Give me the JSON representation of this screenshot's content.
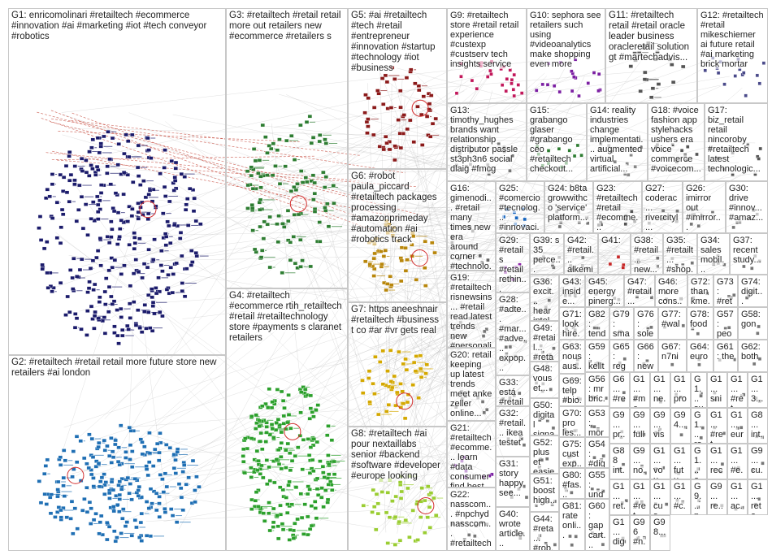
{
  "groups": [
    {
      "label": "G1: enricomolinari #retailtech #ecommerce #innovation #ai #marketing #iot #tech conveyor #robotics"
    },
    {
      "label": "G2: #retailtech #retail retail more future store new retailers #ai london"
    },
    {
      "label": "G3: #retailtech #retail retail more out retailers new #ecommerce #retailers s"
    },
    {
      "label": "G4: #retailtech #ecommerce rtih_retailtech #retail #retailtechnology store #payments s claranet retailers"
    },
    {
      "label": "G5: #ai #retailtech #tech #retail #entrepreneur #innovation #startup #technology #iot #business"
    },
    {
      "label": "G6: #robot paula_piccard #retailtech packages processing #amazonprimeday #automation #ai #robotics track"
    },
    {
      "label": "G7: https aneeshnair #retailtech #business t co #ar #vr gets real"
    },
    {
      "label": "G8: #retailtech #ai pour nextaillabs senior #backend #software #developer #europe looking"
    },
    {
      "label": "G9: #retailtech store #retail retail experience #custexp #custserv tech insights service"
    },
    {
      "label": "G10: sephora see retailers such using #videoanalytics make shopping even more"
    },
    {
      "label": "G11: #retailtech retail #retail oracle leader business oracleretail solution gt #martechadvis..."
    },
    {
      "label": "G12: #retailtech #retail mikeschiemer ai future retail #ai marketing brick mortar"
    },
    {
      "label": "G13: timothy_hughes brands want relationship distributor passle st3ph3n6 social dlaig #fmcg"
    },
    {
      "label": "G15: grabango glaser #grabango ceo #retailtech checkout..."
    },
    {
      "label": "G14: reality industries change implementati... augmented virtual artificial..."
    },
    {
      "label": "G18: #voice fashion app stylehacks ushers era voice commerce #voicecom..."
    },
    {
      "label": "G17: biz_retail retail nincoroby #retailtech latest technologic..."
    },
    {
      "label": "G16: gimenodi... #retail many times new era around corner #technolo..."
    },
    {
      "label": "G25: #comercio #tecnolog... #innovaci..."
    },
    {
      "label": "G24: b8ta growwithco 'service' platform..."
    },
    {
      "label": "G23: #retailtech #retail #ecomme..."
    },
    {
      "label": "G27: coderac... rivercityl... today..."
    },
    {
      "label": "G26: imirror out #imirror..."
    },
    {
      "label": "G30: drive #innov... #amaz..."
    },
    {
      "label": "G29: #retail s #retail rethin..."
    },
    {
      "label": "G39: s 35 perce..."
    },
    {
      "label": "G42: #retail... alkemi..."
    },
    {
      "label": "G41:"
    },
    {
      "label": "G38: #retail... new..."
    },
    {
      "label": "G35: #retailt... #shop..."
    },
    {
      "label": "G34: sales mobil..."
    },
    {
      "label": "G37: recent study..."
    },
    {
      "label": "G19: #retailtech risnewsins... #retail read latest trends new #personali..."
    },
    {
      "label": "G20: retail keeping up latest trends meet anke zeller online..."
    },
    {
      "label": "G21: #retailtech #ecomme... learn #data consumer find best..."
    },
    {
      "label": "G22: nasscom... #npchyd nasscom... #retailtech..."
    },
    {
      "label": "G28: #adte... #mar... #adve... expop..."
    },
    {
      "label": "G33: está #retail evolu..."
    },
    {
      "label": "G32: #retail... ikea testet"
    },
    {
      "label": "G31: story happy see..."
    },
    {
      "label": "G40: wrote article..."
    },
    {
      "label": "G36: excit... hear intel..."
    },
    {
      "label": "G49: #retail... #reta..."
    },
    {
      "label": "G48: vous et..."
    },
    {
      "label": "G50: digital signa..."
    },
    {
      "label": "G52: plus et easie..."
    },
    {
      "label": "G51: boost high..."
    },
    {
      "label": "G44: #reta... #rob..."
    },
    {
      "label": "G43: inside... #cons..."
    },
    {
      "label": "G71: look hire..."
    },
    {
      "label": "G63: nous aus..."
    },
    {
      "label": "G69: telp #bio..."
    },
    {
      "label": "G70: pro les..."
    },
    {
      "label": "G75: cust exp..."
    },
    {
      "label": "G80: #fas..."
    },
    {
      "label": "G81: rate onli..."
    },
    {
      "label": "G45: energy pinerg..."
    },
    {
      "label": "G82: tend"
    },
    {
      "label": "G59: kellt..."
    },
    {
      "label": "G56: mr bric..."
    },
    {
      "label": "G53: more oil"
    },
    {
      "label": "G54: #dig #ret..."
    },
    {
      "label": "G55: und 2..."
    },
    {
      "label": "G60: gap cart..."
    },
    {
      "label": "G47: #retail... #cons..."
    },
    {
      "label": "G46: more cons..."
    },
    {
      "label": "G72: thankme... man..."
    },
    {
      "label": "G73: #reta... milli..."
    },
    {
      "label": "G74: digit... #fra..."
    },
    {
      "label": "G79: sma"
    },
    {
      "label": "G76: solei"
    },
    {
      "label": "G77: #wal"
    },
    {
      "label": "G78: food"
    },
    {
      "label": "G57: peo"
    },
    {
      "label": "G58: gon"
    },
    {
      "label": "G65: regu"
    },
    {
      "label": "G66: new"
    },
    {
      "label": "G67: n7ni"
    },
    {
      "label": "G64: euro"
    },
    {
      "label": "G61: the"
    },
    {
      "label": "G62: both"
    },
    {
      "label": "G6... #re... loo..."
    },
    {
      "label": "G1... #me..."
    },
    {
      "label": "G1... ne..."
    },
    {
      "label": "G1... pro..."
    },
    {
      "label": "G1... sur..."
    },
    {
      "label": "G1... sni..."
    },
    {
      "label": "G1... #ret"
    },
    {
      "label": "G1... 3..."
    },
    {
      "label": "G9... pr..."
    },
    {
      "label": "G9... full"
    },
    {
      "label": "G9... vis"
    },
    {
      "label": "G94..."
    },
    {
      "label": "G1... raj..."
    },
    {
      "label": "G1... #ret"
    },
    {
      "label": "G1... eur..."
    },
    {
      "label": "G8... int..."
    },
    {
      "label": "G88 int..."
    },
    {
      "label": "G9... no..."
    },
    {
      "label": "G1... vou..."
    },
    {
      "label": "G1... futu..."
    },
    {
      "label": "G1... one..."
    },
    {
      "label": "G1... rec..."
    },
    {
      "label": "G1... #e..."
    },
    {
      "label": "G9... cu..."
    },
    {
      "label": "G1... ret..."
    },
    {
      "label": "G1... #ret"
    },
    {
      "label": "G1... cus..."
    },
    {
      "label": "G1... #c..."
    },
    {
      "label": "G9... po..."
    },
    {
      "label": "G9... re..."
    },
    {
      "label": "G1... ac..."
    },
    {
      "label": "G1... reta..."
    },
    {
      "label": "G1... dig..."
    },
    {
      "label": "G96 #n..."
    },
    {
      "label": "G98..."
    }
  ]
}
